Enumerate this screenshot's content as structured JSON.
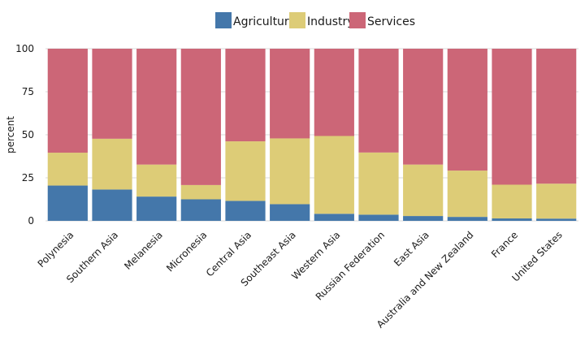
{
  "chart_data": {
    "type": "bar",
    "stacked": true,
    "categories": [
      "Polynesia",
      "Southern Asia",
      "Melanesia",
      "Micronesia",
      "Central Asia",
      "Southeast Asia",
      "Western Asia",
      "Russian Federation",
      "East Asia",
      "Australia and New Zealand",
      "France",
      "United States"
    ],
    "series": [
      {
        "name": "Agriculture",
        "color": "#4477aa",
        "values": [
          20.5,
          18.2,
          14.1,
          12.5,
          11.6,
          9.7,
          4.1,
          3.6,
          2.8,
          2.3,
          1.4,
          1.3
        ]
      },
      {
        "name": "Industry",
        "color": "#ddcc77",
        "values": [
          19.1,
          29.5,
          18.6,
          8.3,
          34.6,
          38.2,
          45.2,
          36.1,
          29.9,
          26.9,
          19.6,
          20.3
        ]
      },
      {
        "name": "Services",
        "color": "#cc6677",
        "values": [
          60.4,
          52.3,
          67.3,
          79.2,
          53.8,
          52.1,
          50.7,
          60.3,
          67.3,
          70.8,
          79.0,
          78.4
        ]
      }
    ],
    "xlabel": "",
    "ylabel": "percent",
    "ylim": [
      0,
      100
    ],
    "yticks": [
      0,
      25,
      50,
      75,
      100
    ],
    "grid": "horizontal",
    "legend_position": "top-center"
  }
}
